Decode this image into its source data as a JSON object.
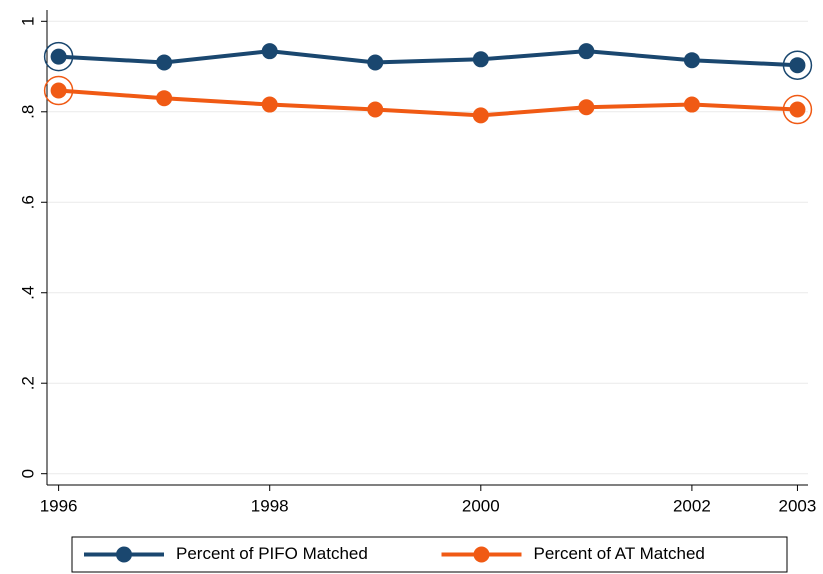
{
  "chart_data": {
    "type": "line",
    "x": [
      1996,
      1997,
      1998,
      1999,
      2000,
      2001,
      2002,
      2003
    ],
    "series": [
      {
        "name": "Percent of PIFO Matched",
        "color": "#1a476f",
        "values": [
          0.922,
          0.909,
          0.934,
          0.909,
          0.916,
          0.934,
          0.914,
          0.903
        ]
      },
      {
        "name": "Percent of AT Matched",
        "color": "#f05a14",
        "values": [
          0.847,
          0.83,
          0.816,
          0.805,
          0.792,
          0.81,
          0.816,
          0.805
        ]
      }
    ],
    "xlim": [
      1995.89,
      2003.1
    ],
    "xticks": [
      1996,
      1998,
      2000,
      2002,
      2003
    ],
    "ylim": [
      -0.025,
      1.025
    ],
    "yticks": [
      0,
      {
        "value": 0.2,
        "label": ".2"
      },
      {
        "value": 0.4,
        "label": ".4"
      },
      {
        "value": 0.6,
        "label": ".6"
      },
      {
        "value": 0.8,
        "label": ".8"
      },
      1
    ],
    "grid": true,
    "legend": "bottom",
    "end_rings": true
  }
}
